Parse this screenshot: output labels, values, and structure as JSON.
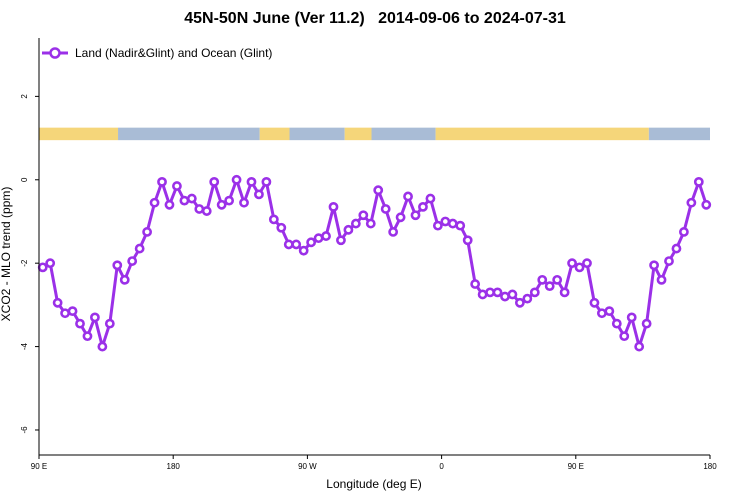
{
  "chart_data": {
    "type": "line",
    "title": "45N-50N June (Ver 11.2)   2014-09-06 to 2024-07-31",
    "xlabel": "Longitude (deg E)",
    "ylabel": "XCO2 - MLO trend (ppm)",
    "xlim": [
      90,
      540
    ],
    "ylim": [
      -6.6,
      3.4
    ],
    "x_ticks": [
      {
        "value": 90,
        "label": "90 E"
      },
      {
        "value": 180,
        "label": "180"
      },
      {
        "value": 270,
        "label": "90 W"
      },
      {
        "value": 360,
        "label": "0"
      },
      {
        "value": 450,
        "label": "90 E"
      },
      {
        "value": 540,
        "label": "180"
      }
    ],
    "y_ticks": [
      {
        "value": 2,
        "label": "2"
      },
      {
        "value": 0,
        "label": "0"
      },
      {
        "value": -2,
        "label": "-2"
      },
      {
        "value": -4,
        "label": "-4"
      },
      {
        "value": -6,
        "label": "-6"
      }
    ],
    "grid": false,
    "legend_position": "top-left",
    "land_color": "#f5d67a",
    "ocean_color": "#a9bcd6",
    "land_ocean_strip": [
      {
        "from": 90,
        "to": 143,
        "type": "land"
      },
      {
        "from": 143,
        "to": 238,
        "type": "ocean"
      },
      {
        "from": 238,
        "to": 258,
        "type": "land"
      },
      {
        "from": 258,
        "to": 295,
        "type": "ocean"
      },
      {
        "from": 295,
        "to": 313,
        "type": "land"
      },
      {
        "from": 313,
        "to": 356,
        "type": "ocean"
      },
      {
        "from": 356,
        "to": 499,
        "type": "land"
      },
      {
        "from": 499,
        "to": 540,
        "type": "ocean"
      }
    ],
    "series": [
      {
        "name": "Land (Nadir&Glint) and Ocean (Glint)",
        "color": "#9b30e8",
        "x": [
          92.5,
          97.5,
          102.5,
          107.5,
          112.5,
          117.5,
          122.5,
          127.5,
          132.5,
          137.5,
          142.5,
          147.5,
          152.5,
          157.5,
          162.5,
          167.5,
          172.5,
          177.5,
          182.5,
          187.5,
          192.5,
          197.5,
          202.5,
          207.5,
          212.5,
          217.5,
          222.5,
          227.5,
          232.5,
          237.5,
          242.5,
          247.5,
          252.5,
          257.5,
          262.5,
          267.5,
          272.5,
          277.5,
          282.5,
          287.5,
          292.5,
          297.5,
          302.5,
          307.5,
          312.5,
          317.5,
          322.5,
          327.5,
          332.5,
          337.5,
          342.5,
          347.5,
          352.5,
          357.5,
          362.5,
          367.5,
          372.5,
          377.5,
          382.5,
          387.5,
          392.5,
          397.5,
          402.5,
          407.5,
          412.5,
          417.5,
          422.5,
          427.5,
          432.5,
          437.5,
          442.5,
          447.5,
          452.5,
          457.5,
          462.5,
          467.5,
          472.5,
          477.5,
          482.5,
          487.5,
          492.5,
          497.5,
          502.5,
          507.5,
          512.5,
          517.5,
          522.5,
          527.5,
          532.5,
          537.5,
          540
        ],
        "values": [
          -2.1,
          -2.0,
          -2.95,
          -3.2,
          -3.15,
          -3.45,
          -3.75,
          -3.3,
          -4.0,
          -3.45,
          -2.05,
          -2.4,
          -1.95,
          -1.65,
          -1.25,
          -0.55,
          -0.05,
          -0.6,
          -0.15,
          -0.5,
          -0.45,
          -0.7,
          -0.75,
          -0.05,
          -0.6,
          -0.5,
          0.0,
          -0.55,
          -0.05,
          -0.35,
          -0.05,
          -0.95,
          -1.15,
          -1.55,
          -1.55,
          -1.7,
          -1.5,
          -1.4,
          -1.35,
          -0.65,
          -1.45,
          -1.2,
          -1.05,
          -0.85,
          -1.05,
          -0.25,
          -0.7,
          -1.25,
          -0.9,
          -0.4,
          -0.85,
          -0.65,
          -0.45,
          -1.1,
          -1.0,
          -1.05,
          -1.1,
          -1.45,
          -2.5,
          -2.75,
          -2.7,
          -2.7,
          -2.8,
          -2.75,
          -2.95,
          -2.85,
          -2.7,
          -2.4,
          -2.55,
          -2.4,
          -2.7,
          -2.0,
          -2.1,
          -2.0,
          -2.95,
          -3.2,
          -3.15,
          -3.45,
          -3.75,
          -3.3,
          -4.0,
          -3.45,
          -2.05,
          -2.4,
          -1.95,
          -1.65,
          -1.25,
          -0.55,
          -0.05,
          -0.6,
          -0.6
        ]
      }
    ]
  }
}
